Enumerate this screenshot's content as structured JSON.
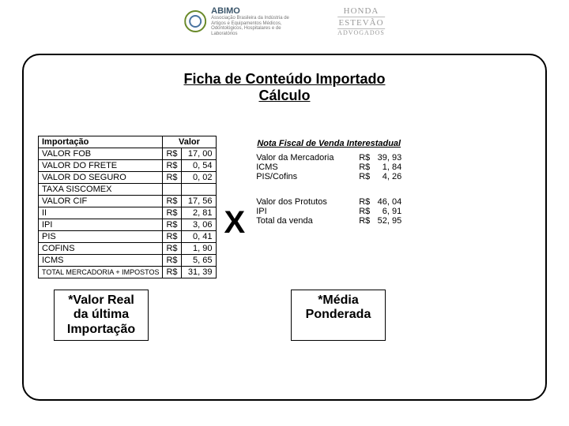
{
  "header": {
    "abimo_brand": "ABIMO",
    "abimo_sub": "Associação Brasileira da Indústria de Artigos e Equipamentos Médicos, Odontológicos, Hospitalares e de Laboratórios",
    "honda_l1": "HONDA",
    "honda_l2": "ESTEVÃO",
    "honda_adv": "ADVOGADOS"
  },
  "title_l1": "Ficha de Conteúdo Importado",
  "title_l2": "Cálculo",
  "import_table": {
    "col1": "Importação",
    "col2": "Valor",
    "rows": [
      {
        "label": "VALOR FOB",
        "cur": "R$",
        "val": "17, 00"
      },
      {
        "label": "VALOR DO FRETE",
        "cur": "R$",
        "val": "0, 54"
      },
      {
        "label": "VALOR DO SEGURO",
        "cur": "R$",
        "val": "0, 02"
      },
      {
        "label": "TAXA SISCOMEX",
        "cur": "",
        "val": ""
      },
      {
        "label": "VALOR CIF",
        "cur": "R$",
        "val": "17, 56"
      },
      {
        "label": "II",
        "cur": "R$",
        "val": "2, 81"
      },
      {
        "label": "IPI",
        "cur": "R$",
        "val": "3, 06"
      },
      {
        "label": "PIS",
        "cur": "R$",
        "val": "0, 41"
      },
      {
        "label": "COFINS",
        "cur": "R$",
        "val": "1, 90"
      },
      {
        "label": "ICMS",
        "cur": "R$",
        "val": "5, 65"
      },
      {
        "label": "TOTAL MERCADORIA + IMPOSTOS",
        "cur": "R$",
        "val": "31, 39"
      }
    ]
  },
  "x": "X",
  "nota": {
    "head": "Nota Fiscal de Venda Interestadual",
    "rows1": [
      {
        "label": "Valor da Mercadoria",
        "cur": "R$",
        "val": "39, 93"
      },
      {
        "label": "ICMS",
        "cur": "R$",
        "val": "1, 84"
      },
      {
        "label": "PIS/Cofins",
        "cur": "R$",
        "val": "4, 26"
      }
    ],
    "rows2": [
      {
        "label": "Valor dos Protutos",
        "cur": "R$",
        "val": "46, 04"
      },
      {
        "label": "IPI",
        "cur": "R$",
        "val": "6, 91"
      },
      {
        "label": "Total da venda",
        "cur": "R$",
        "val": "52, 95"
      }
    ]
  },
  "fn1": "*Valor Real da última Importação",
  "fn2": "*Média Ponderada"
}
